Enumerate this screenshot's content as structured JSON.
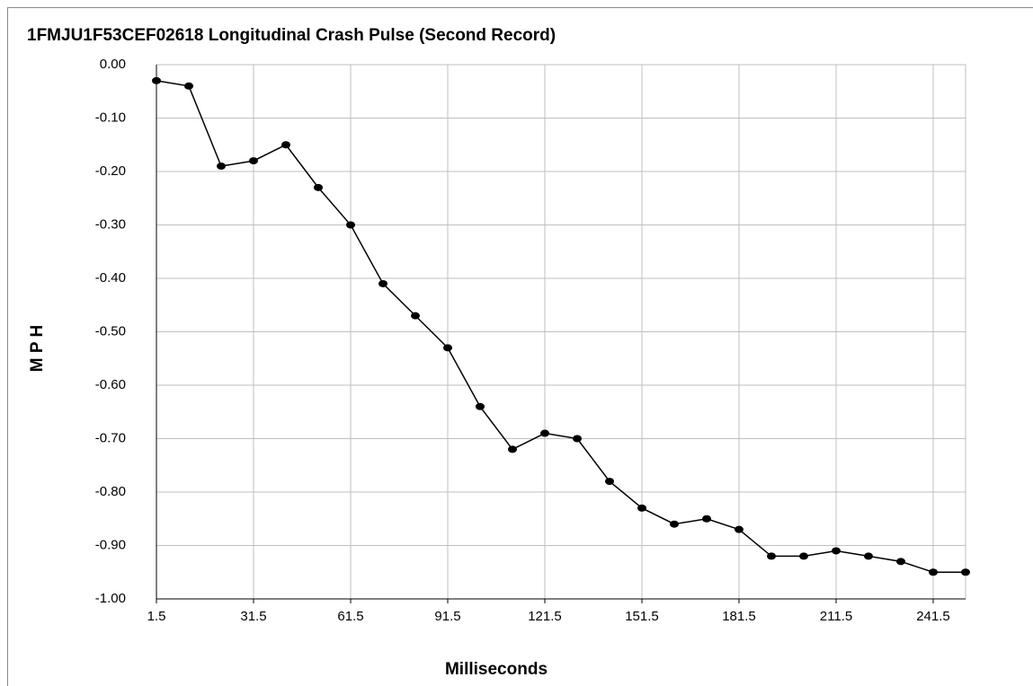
{
  "chart_data": {
    "type": "line",
    "title": "1FMJU1F53CEF02618  Longitudinal Crash Pulse (Second Record)",
    "x_label": "Milliseconds",
    "y_label": "M P H",
    "x": [
      1.5,
      11.5,
      21.5,
      31.5,
      41.5,
      51.5,
      61.5,
      71.5,
      81.5,
      91.5,
      101.5,
      111.5,
      121.5,
      131.5,
      141.5,
      151.5,
      161.5,
      171.5,
      181.5,
      191.5,
      201.5,
      211.5,
      221.5,
      231.5,
      241.5,
      251.5
    ],
    "series": [
      {
        "name": "MPH",
        "color": "#000000",
        "values": [
          -0.03,
          -0.04,
          -0.19,
          -0.18,
          -0.15,
          -0.23,
          -0.3,
          -0.41,
          -0.47,
          -0.53,
          -0.64,
          -0.72,
          -0.69,
          -0.7,
          -0.78,
          -0.83,
          -0.86,
          -0.85,
          -0.87,
          -0.92,
          -0.92,
          -0.91,
          -0.92,
          -0.93,
          -0.95,
          -0.95
        ]
      }
    ],
    "xlim": [
      1.5,
      251.5
    ],
    "xticks": [
      1.5,
      31.5,
      61.5,
      91.5,
      121.5,
      151.5,
      181.5,
      211.5,
      241.5
    ],
    "ylim": [
      -1.0,
      0.0
    ],
    "yticks": [
      {
        "value": 0,
        "label": "0.00"
      },
      {
        "value": -0.1,
        "label": "-0.10"
      },
      {
        "value": -0.2,
        "label": "-0.20"
      },
      {
        "value": -0.3,
        "label": "-0.30"
      },
      {
        "value": -0.4,
        "label": "-0.40"
      },
      {
        "value": -0.5,
        "label": "-0.50"
      },
      {
        "value": -0.6,
        "label": "-0.60"
      },
      {
        "value": -0.7,
        "label": "-0.70"
      },
      {
        "value": -0.8,
        "label": "-0.80"
      },
      {
        "value": -0.9,
        "label": "-0.90"
      },
      {
        "value": -1.0,
        "label": "-1.00"
      }
    ],
    "grid": true
  }
}
